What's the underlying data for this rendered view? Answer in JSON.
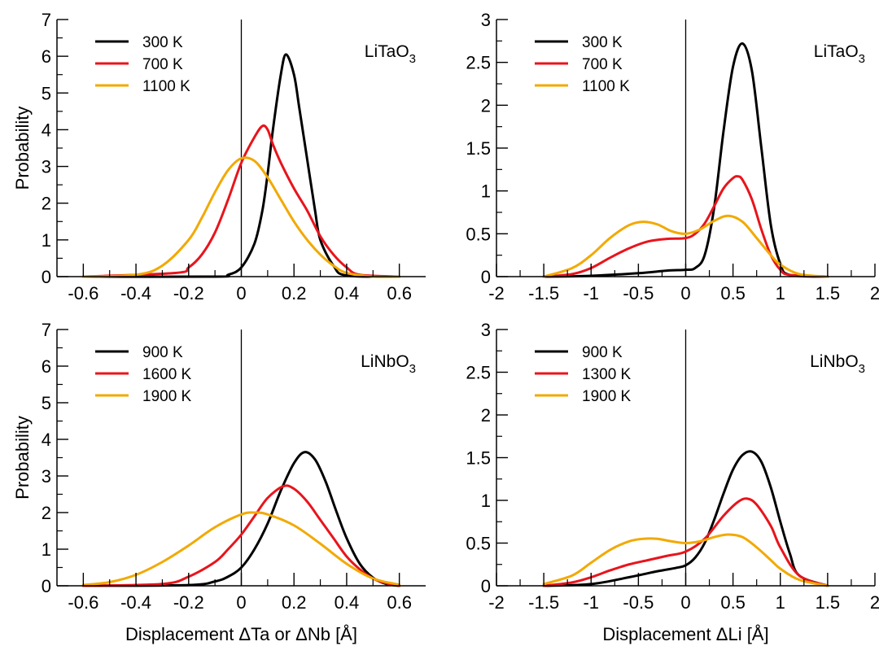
{
  "chart_data": [
    {
      "type": "line",
      "annotation": "LiTaO",
      "annotation_sub": "3",
      "xlabel": "",
      "ylabel": "Probability",
      "xlim": [
        -0.7,
        0.7
      ],
      "ylim": [
        0,
        7
      ],
      "xticks": [
        -0.6,
        -0.4,
        -0.2,
        0,
        0.2,
        0.4,
        0.6
      ],
      "xtick_labels": [
        "-0.6",
        "-0.4",
        "-0.2",
        "0",
        "0.2",
        "0.4",
        "0.6"
      ],
      "yticks": [
        0,
        1,
        2,
        3,
        4,
        5,
        6,
        7
      ],
      "ytick_labels": [
        "0",
        "1",
        "2",
        "3",
        "4",
        "5",
        "6",
        "7"
      ],
      "vline_x": 0,
      "legend_position": "top-left",
      "grid": false,
      "series": [
        {
          "name": "300 K",
          "color": "#000000",
          "x": [
            -0.6,
            -0.1,
            -0.05,
            0,
            0.05,
            0.08,
            0.1,
            0.12,
            0.15,
            0.17,
            0.2,
            0.22,
            0.25,
            0.28,
            0.3,
            0.35,
            0.4,
            0.6
          ],
          "y": [
            0,
            0,
            0.05,
            0.25,
            0.9,
            1.8,
            2.8,
            4.0,
            5.5,
            6.05,
            5.5,
            4.6,
            3.2,
            1.8,
            1.0,
            0.3,
            0.03,
            0
          ]
        },
        {
          "name": "700 K",
          "color": "#e8141c",
          "x": [
            -0.6,
            -0.25,
            -0.2,
            -0.15,
            -0.1,
            -0.05,
            0,
            0.05,
            0.08,
            0.1,
            0.12,
            0.15,
            0.2,
            0.25,
            0.3,
            0.35,
            0.4,
            0.45,
            0.6
          ],
          "y": [
            0,
            0.1,
            0.25,
            0.6,
            1.2,
            2.1,
            3.1,
            3.8,
            4.1,
            4.0,
            3.6,
            3.1,
            2.4,
            1.8,
            1.1,
            0.6,
            0.25,
            0.05,
            0
          ]
        },
        {
          "name": "1100 K",
          "color": "#f2a900",
          "x": [
            -0.6,
            -0.4,
            -0.3,
            -0.2,
            -0.15,
            -0.1,
            -0.05,
            0,
            0.05,
            0.1,
            0.15,
            0.2,
            0.25,
            0.3,
            0.35,
            0.4,
            0.5,
            0.6
          ],
          "y": [
            0,
            0.05,
            0.3,
            1.0,
            1.6,
            2.3,
            2.9,
            3.22,
            3.15,
            2.7,
            2.1,
            1.5,
            1.0,
            0.6,
            0.3,
            0.1,
            0,
            0
          ]
        }
      ]
    },
    {
      "type": "line",
      "annotation": "LiTaO",
      "annotation_sub": "3",
      "xlabel": "",
      "ylabel": "",
      "xlim": [
        -2,
        2
      ],
      "ylim": [
        0,
        3
      ],
      "xticks": [
        -2,
        -1.5,
        -1,
        -0.5,
        0,
        0.5,
        1,
        1.5,
        2
      ],
      "xtick_labels": [
        "-2",
        "-1.5",
        "-1",
        "-0.5",
        "0",
        "0.5",
        "1",
        "1.5",
        "2"
      ],
      "yticks": [
        0,
        0.5,
        1,
        1.5,
        2,
        2.5,
        3
      ],
      "ytick_labels": [
        "0",
        "0.5",
        "1",
        "1.5",
        "2",
        "2.5",
        "3"
      ],
      "vline_x": 0,
      "legend_position": "top-left",
      "grid": false,
      "series": [
        {
          "name": "300 K",
          "color": "#000000",
          "x": [
            -1.5,
            -1.0,
            -0.5,
            -0.2,
            0,
            0.1,
            0.2,
            0.3,
            0.4,
            0.5,
            0.6,
            0.7,
            0.8,
            0.9,
            1.0,
            1.1,
            1.5
          ],
          "y": [
            0,
            0.01,
            0.04,
            0.07,
            0.08,
            0.1,
            0.25,
            0.8,
            1.7,
            2.45,
            2.72,
            2.4,
            1.5,
            0.6,
            0.15,
            0.02,
            0
          ]
        },
        {
          "name": "700 K",
          "color": "#e8141c",
          "x": [
            -1.5,
            -1.2,
            -1.0,
            -0.8,
            -0.6,
            -0.4,
            -0.2,
            0,
            0.1,
            0.2,
            0.3,
            0.4,
            0.5,
            0.55,
            0.6,
            0.7,
            0.8,
            0.9,
            1.0,
            1.1,
            1.5
          ],
          "y": [
            0,
            0.03,
            0.1,
            0.22,
            0.33,
            0.41,
            0.44,
            0.45,
            0.5,
            0.62,
            0.82,
            1.03,
            1.15,
            1.17,
            1.13,
            0.9,
            0.55,
            0.25,
            0.08,
            0.02,
            0
          ]
        },
        {
          "name": "1100 K",
          "color": "#f2a900",
          "x": [
            -1.5,
            -1.2,
            -1.0,
            -0.8,
            -0.6,
            -0.45,
            -0.3,
            -0.15,
            0,
            0.15,
            0.3,
            0.45,
            0.6,
            0.75,
            0.9,
            1.0,
            1.2,
            1.5
          ],
          "y": [
            0,
            0.1,
            0.25,
            0.45,
            0.6,
            0.64,
            0.61,
            0.53,
            0.5,
            0.55,
            0.65,
            0.71,
            0.64,
            0.45,
            0.25,
            0.14,
            0.03,
            0
          ]
        }
      ]
    },
    {
      "type": "line",
      "annotation": "LiNbO",
      "annotation_sub": "3",
      "xlabel": "Displacement ΔTa or ΔNb [Å]",
      "ylabel": "Probability",
      "xlim": [
        -0.7,
        0.7
      ],
      "ylim": [
        0,
        7
      ],
      "xticks": [
        -0.6,
        -0.4,
        -0.2,
        0,
        0.2,
        0.4,
        0.6
      ],
      "xtick_labels": [
        "-0.6",
        "-0.4",
        "-0.2",
        "0",
        "0.2",
        "0.4",
        "0.6"
      ],
      "yticks": [
        0,
        1,
        2,
        3,
        4,
        5,
        6,
        7
      ],
      "ytick_labels": [
        "0",
        "1",
        "2",
        "3",
        "4",
        "5",
        "6",
        "7"
      ],
      "vline_x": 0,
      "legend_position": "top-left",
      "grid": false,
      "series": [
        {
          "name": "900 K",
          "color": "#000000",
          "x": [
            -0.6,
            -0.2,
            -0.1,
            -0.05,
            0,
            0.05,
            0.1,
            0.15,
            0.2,
            0.24,
            0.28,
            0.32,
            0.36,
            0.4,
            0.45,
            0.5,
            0.55,
            0.6
          ],
          "y": [
            0,
            0.02,
            0.12,
            0.25,
            0.5,
            1.0,
            1.7,
            2.6,
            3.35,
            3.65,
            3.45,
            2.85,
            2.05,
            1.3,
            0.6,
            0.22,
            0.05,
            0
          ]
        },
        {
          "name": "1600 K",
          "color": "#e8141c",
          "x": [
            -0.6,
            -0.3,
            -0.2,
            -0.1,
            -0.05,
            0,
            0.05,
            0.1,
            0.16,
            0.2,
            0.25,
            0.3,
            0.35,
            0.4,
            0.45,
            0.5,
            0.55,
            0.6
          ],
          "y": [
            0,
            0.05,
            0.25,
            0.65,
            1.0,
            1.4,
            1.9,
            2.4,
            2.72,
            2.65,
            2.3,
            1.8,
            1.3,
            0.8,
            0.45,
            0.2,
            0.07,
            0
          ]
        },
        {
          "name": "1900 K",
          "color": "#f2a900",
          "x": [
            -0.6,
            -0.5,
            -0.4,
            -0.3,
            -0.2,
            -0.1,
            0,
            0.05,
            0.1,
            0.2,
            0.3,
            0.4,
            0.5,
            0.6
          ],
          "y": [
            0.02,
            0.1,
            0.3,
            0.65,
            1.1,
            1.6,
            1.95,
            2.0,
            1.95,
            1.65,
            1.15,
            0.6,
            0.2,
            0.03
          ]
        }
      ]
    },
    {
      "type": "line",
      "annotation": "LiNbO",
      "annotation_sub": "3",
      "xlabel": "Displacement ΔLi [Å]",
      "ylabel": "",
      "xlim": [
        -2,
        2
      ],
      "ylim": [
        0,
        3
      ],
      "xticks": [
        -2,
        -1.5,
        -1,
        -0.5,
        0,
        0.5,
        1,
        1.5,
        2
      ],
      "xtick_labels": [
        "-2",
        "-1.5",
        "-1",
        "-0.5",
        "0",
        "0.5",
        "1",
        "1.5",
        "2"
      ],
      "yticks": [
        0,
        0.5,
        1,
        1.5,
        2,
        2.5,
        3
      ],
      "ytick_labels": [
        "0",
        "0.5",
        "1",
        "1.5",
        "2",
        "2.5",
        "3"
      ],
      "vline_x": 0,
      "legend_position": "top-left",
      "grid": false,
      "series": [
        {
          "name": "900 K",
          "color": "#000000",
          "x": [
            -1.5,
            -1.0,
            -0.6,
            -0.3,
            -0.1,
            0,
            0.1,
            0.2,
            0.3,
            0.4,
            0.5,
            0.6,
            0.7,
            0.8,
            0.9,
            1.0,
            1.1,
            1.2,
            1.5
          ],
          "y": [
            0,
            0.02,
            0.1,
            0.17,
            0.21,
            0.24,
            0.33,
            0.5,
            0.77,
            1.08,
            1.36,
            1.53,
            1.57,
            1.45,
            1.15,
            0.75,
            0.38,
            0.12,
            0
          ]
        },
        {
          "name": "1300 K",
          "color": "#e8141c",
          "x": [
            -1.5,
            -1.2,
            -1.0,
            -0.8,
            -0.6,
            -0.4,
            -0.2,
            0,
            0.2,
            0.4,
            0.55,
            0.65,
            0.75,
            0.9,
            1.0,
            1.2,
            1.5
          ],
          "y": [
            0,
            0.04,
            0.1,
            0.18,
            0.25,
            0.3,
            0.35,
            0.4,
            0.55,
            0.82,
            0.98,
            1.02,
            0.95,
            0.7,
            0.45,
            0.12,
            0
          ]
        },
        {
          "name": "1900 K",
          "color": "#f2a900",
          "x": [
            -1.5,
            -1.2,
            -1.0,
            -0.8,
            -0.6,
            -0.45,
            -0.3,
            -0.15,
            0,
            0.15,
            0.3,
            0.45,
            0.6,
            0.75,
            0.9,
            1.0,
            1.2,
            1.5
          ],
          "y": [
            0.02,
            0.12,
            0.27,
            0.42,
            0.52,
            0.55,
            0.55,
            0.52,
            0.5,
            0.52,
            0.57,
            0.6,
            0.57,
            0.45,
            0.3,
            0.2,
            0.07,
            0
          ]
        }
      ]
    }
  ]
}
